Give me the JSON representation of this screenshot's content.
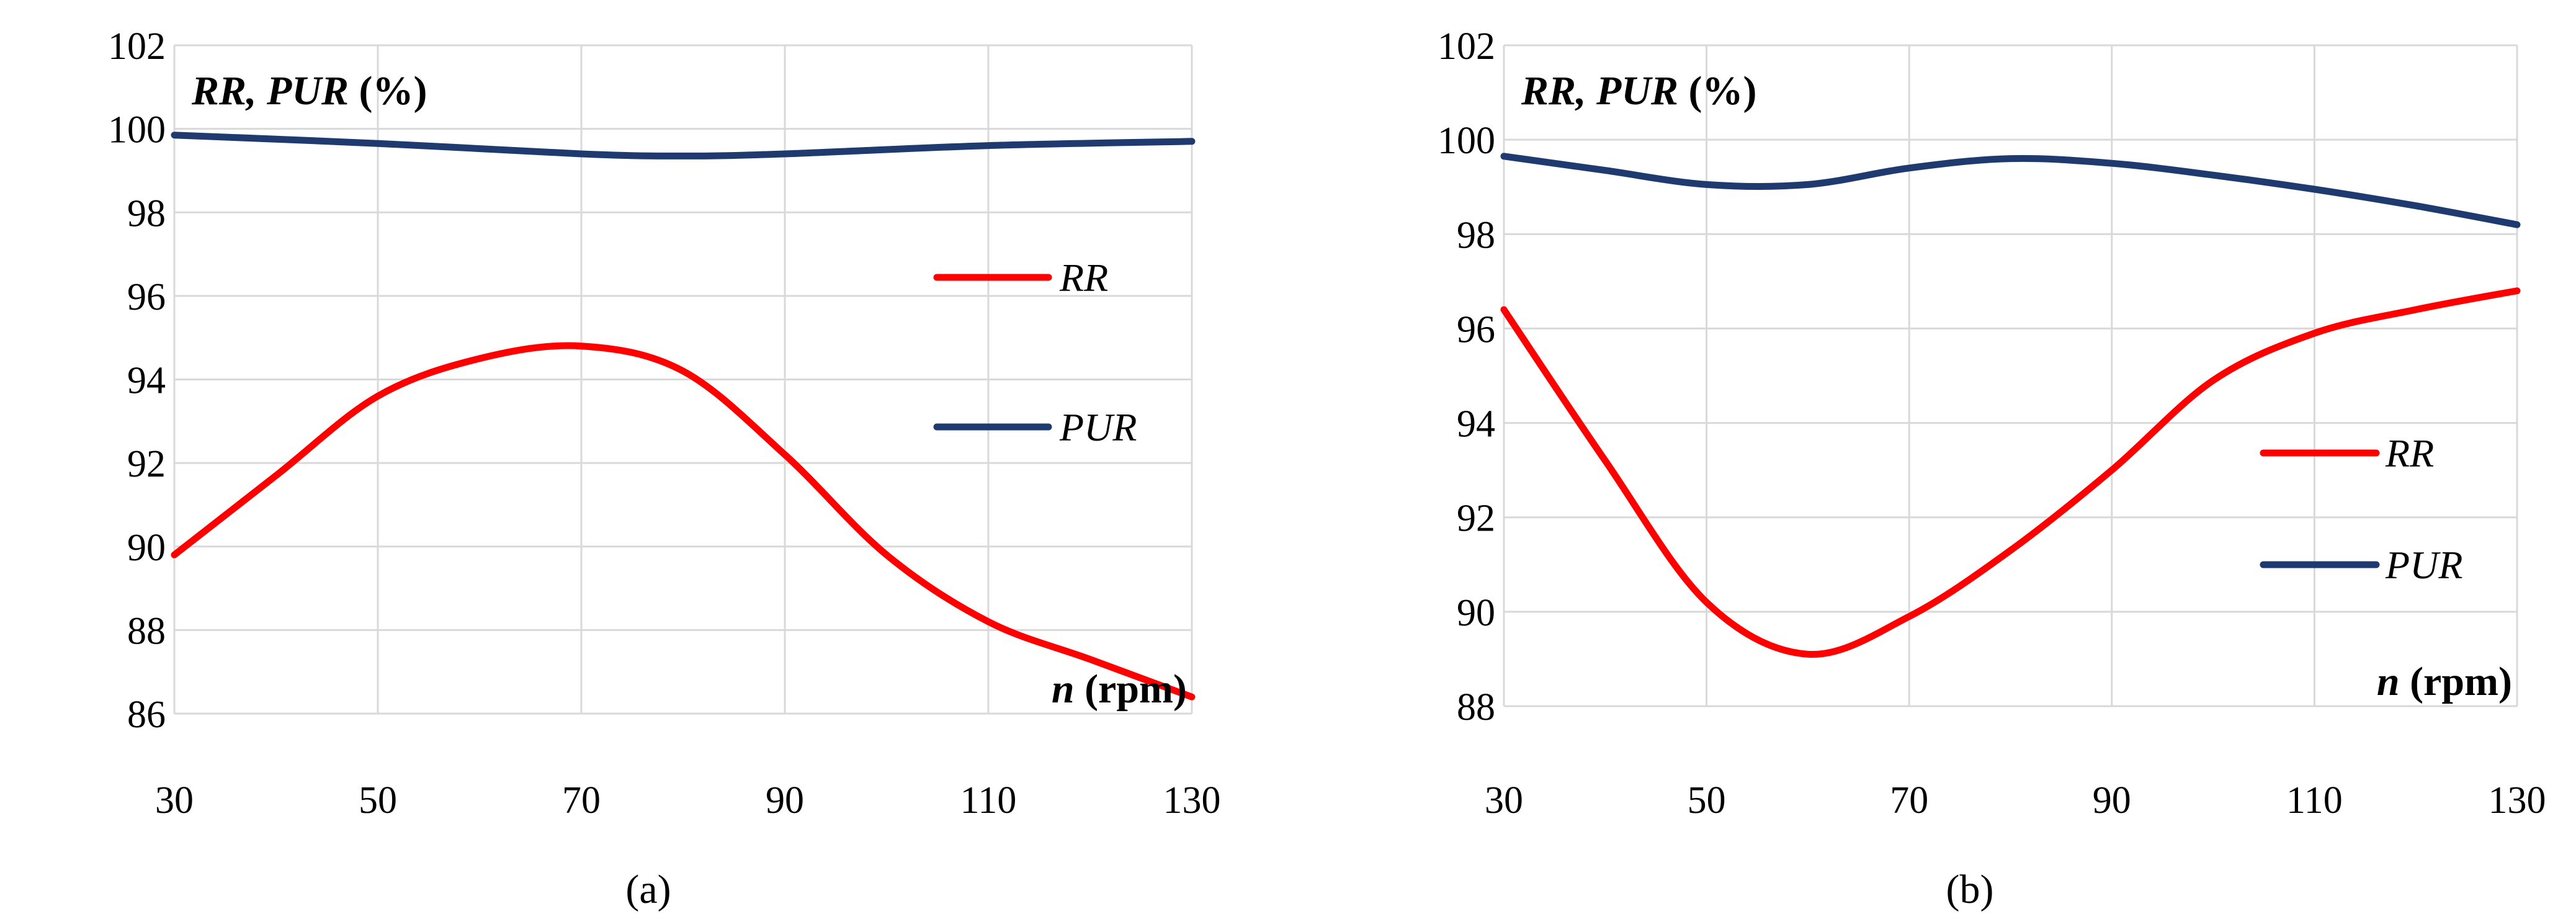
{
  "chart_data": [
    {
      "id": "a",
      "type": "line",
      "panel_label": "(a)",
      "title": "RR, PUR (%)",
      "title_parts": [
        "RR",
        ", ",
        "PUR",
        " (%)"
      ],
      "xlabel": "n (rpm)",
      "xlabel_parts": [
        "n",
        " (rpm)"
      ],
      "ylabel": "",
      "xlim": [
        30,
        130
      ],
      "ylim": [
        86,
        102
      ],
      "xticks": [
        30,
        50,
        70,
        90,
        110,
        130
      ],
      "yticks": [
        86,
        88,
        90,
        92,
        94,
        96,
        98,
        100,
        102
      ],
      "grid": true,
      "legend_position": "right",
      "series": [
        {
          "name": "RR",
          "color": "#ff0000",
          "x": [
            30,
            40,
            50,
            60,
            70,
            80,
            90,
            100,
            110,
            120,
            130
          ],
          "values": [
            89.8,
            91.7,
            93.6,
            94.5,
            94.8,
            94.2,
            92.2,
            89.8,
            88.2,
            87.3,
            86.4
          ]
        },
        {
          "name": "PUR",
          "color": "#1f3a6e",
          "x": [
            30,
            50,
            70,
            80,
            90,
            110,
            130
          ],
          "values": [
            99.85,
            99.65,
            99.4,
            99.35,
            99.4,
            99.6,
            99.7
          ]
        }
      ]
    },
    {
      "id": "b",
      "type": "line",
      "panel_label": "(b)",
      "title": "RR, PUR (%)",
      "title_parts": [
        "RR",
        ", ",
        "PUR",
        " (%)"
      ],
      "xlabel": "n (rpm)",
      "xlabel_parts": [
        "n",
        " (rpm)"
      ],
      "ylabel": "",
      "xlim": [
        30,
        130
      ],
      "ylim": [
        88,
        102
      ],
      "xticks": [
        30,
        50,
        70,
        90,
        110,
        130
      ],
      "yticks": [
        88,
        90,
        92,
        94,
        96,
        98,
        100,
        102
      ],
      "grid": true,
      "legend_position": "right",
      "series": [
        {
          "name": "RR",
          "color": "#ff0000",
          "x": [
            30,
            40,
            50,
            60,
            70,
            80,
            90,
            100,
            110,
            120,
            130
          ],
          "values": [
            96.4,
            93.2,
            90.2,
            89.1,
            89.9,
            91.3,
            93.0,
            94.9,
            95.9,
            96.4,
            96.8
          ]
        },
        {
          "name": "PUR",
          "color": "#1f3a6e",
          "x": [
            30,
            40,
            50,
            60,
            70,
            80,
            90,
            100,
            110,
            120,
            130
          ],
          "values": [
            99.65,
            99.35,
            99.05,
            99.05,
            99.4,
            99.6,
            99.5,
            99.25,
            98.95,
            98.6,
            98.2
          ]
        }
      ]
    }
  ]
}
